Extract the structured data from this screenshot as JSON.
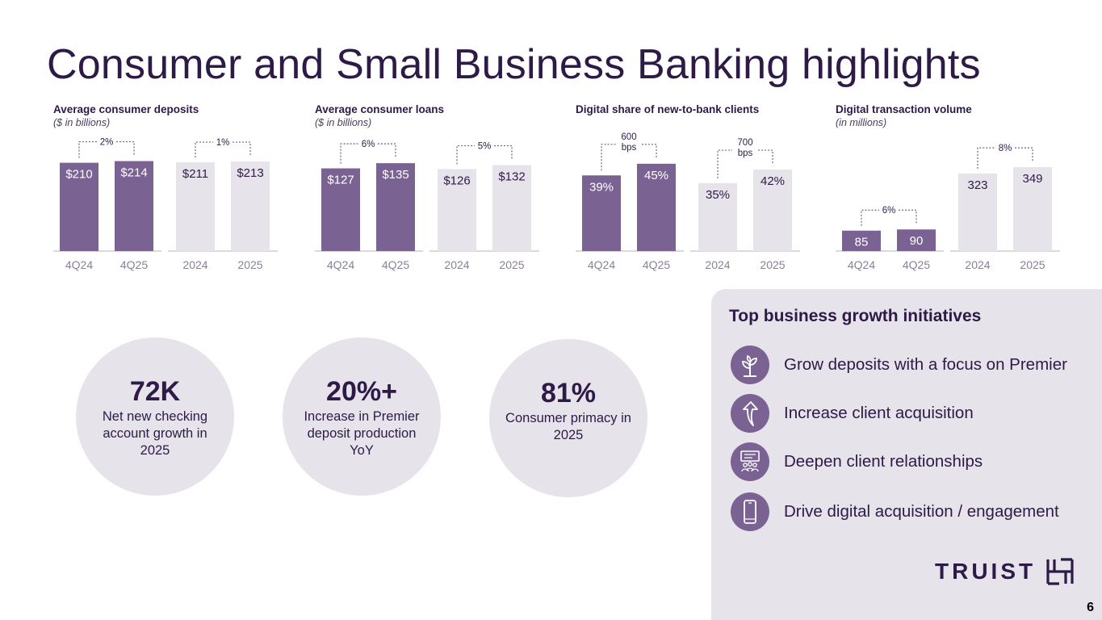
{
  "page": {
    "title": "Consumer and Small Business Banking highlights",
    "page_number": "6"
  },
  "colors": {
    "purple_bar": "#7a6393",
    "light_bar": "#e6e3ea",
    "text_dark": "#2e1a47",
    "panel_bg": "#e6e3ea"
  },
  "chart_data": [
    {
      "type": "bar",
      "title": "Average consumer deposits",
      "subtitle": "($ in billions)",
      "categories": [
        "4Q24",
        "4Q25",
        "2024",
        "2025"
      ],
      "values": [
        210,
        214,
        211,
        213
      ],
      "labels": [
        "$210",
        "$214",
        "$211",
        "$213"
      ],
      "changes": [
        "2%",
        "1%"
      ],
      "ylim": [
        0,
        240
      ]
    },
    {
      "type": "bar",
      "title": "Average consumer loans",
      "subtitle": "($ in billions)",
      "categories": [
        "4Q24",
        "4Q25",
        "2024",
        "2025"
      ],
      "values": [
        127,
        135,
        126,
        132
      ],
      "labels": [
        "$127",
        "$135",
        "$126",
        "$132"
      ],
      "changes": [
        "6%",
        "5%"
      ],
      "ylim": [
        0,
        155
      ]
    },
    {
      "type": "bar",
      "title": "Digital share of new-to-bank clients",
      "subtitle": "",
      "categories": [
        "4Q24",
        "4Q25",
        "2024",
        "2025"
      ],
      "values": [
        39,
        45,
        35,
        42
      ],
      "labels": [
        "39%",
        "45%",
        "35%",
        "42%"
      ],
      "changes": [
        "600\nbps",
        "700\nbps"
      ],
      "ylim": [
        0,
        52
      ]
    },
    {
      "type": "bar",
      "title": "Digital transaction volume",
      "subtitle": "(in millions)",
      "categories": [
        "4Q24",
        "4Q25",
        "2024",
        "2025"
      ],
      "values": [
        85,
        90,
        323,
        349
      ],
      "labels": [
        "85",
        "90",
        "323",
        "349"
      ],
      "changes": [
        "6%",
        "8%"
      ],
      "ylim": [
        0,
        420
      ]
    }
  ],
  "stats": [
    {
      "value": "72K",
      "description": "Net new checking account growth in 2025"
    },
    {
      "value": "20%+",
      "description": "Increase in Premier deposit production YoY"
    },
    {
      "value": "81%",
      "description": "Consumer primacy in 2025"
    }
  ],
  "initiatives": {
    "title": "Top business growth initiatives",
    "items": [
      {
        "label": "Grow deposits with a focus on Premier",
        "icon": "plant-icon"
      },
      {
        "label": "Increase client acquisition",
        "icon": "arrow-up-icon"
      },
      {
        "label": "Deepen client relationships",
        "icon": "people-presentation-icon"
      },
      {
        "label": "Drive digital acquisition / engagement",
        "icon": "mobile-phone-icon"
      }
    ]
  },
  "logo": {
    "text": "TRUIST"
  }
}
